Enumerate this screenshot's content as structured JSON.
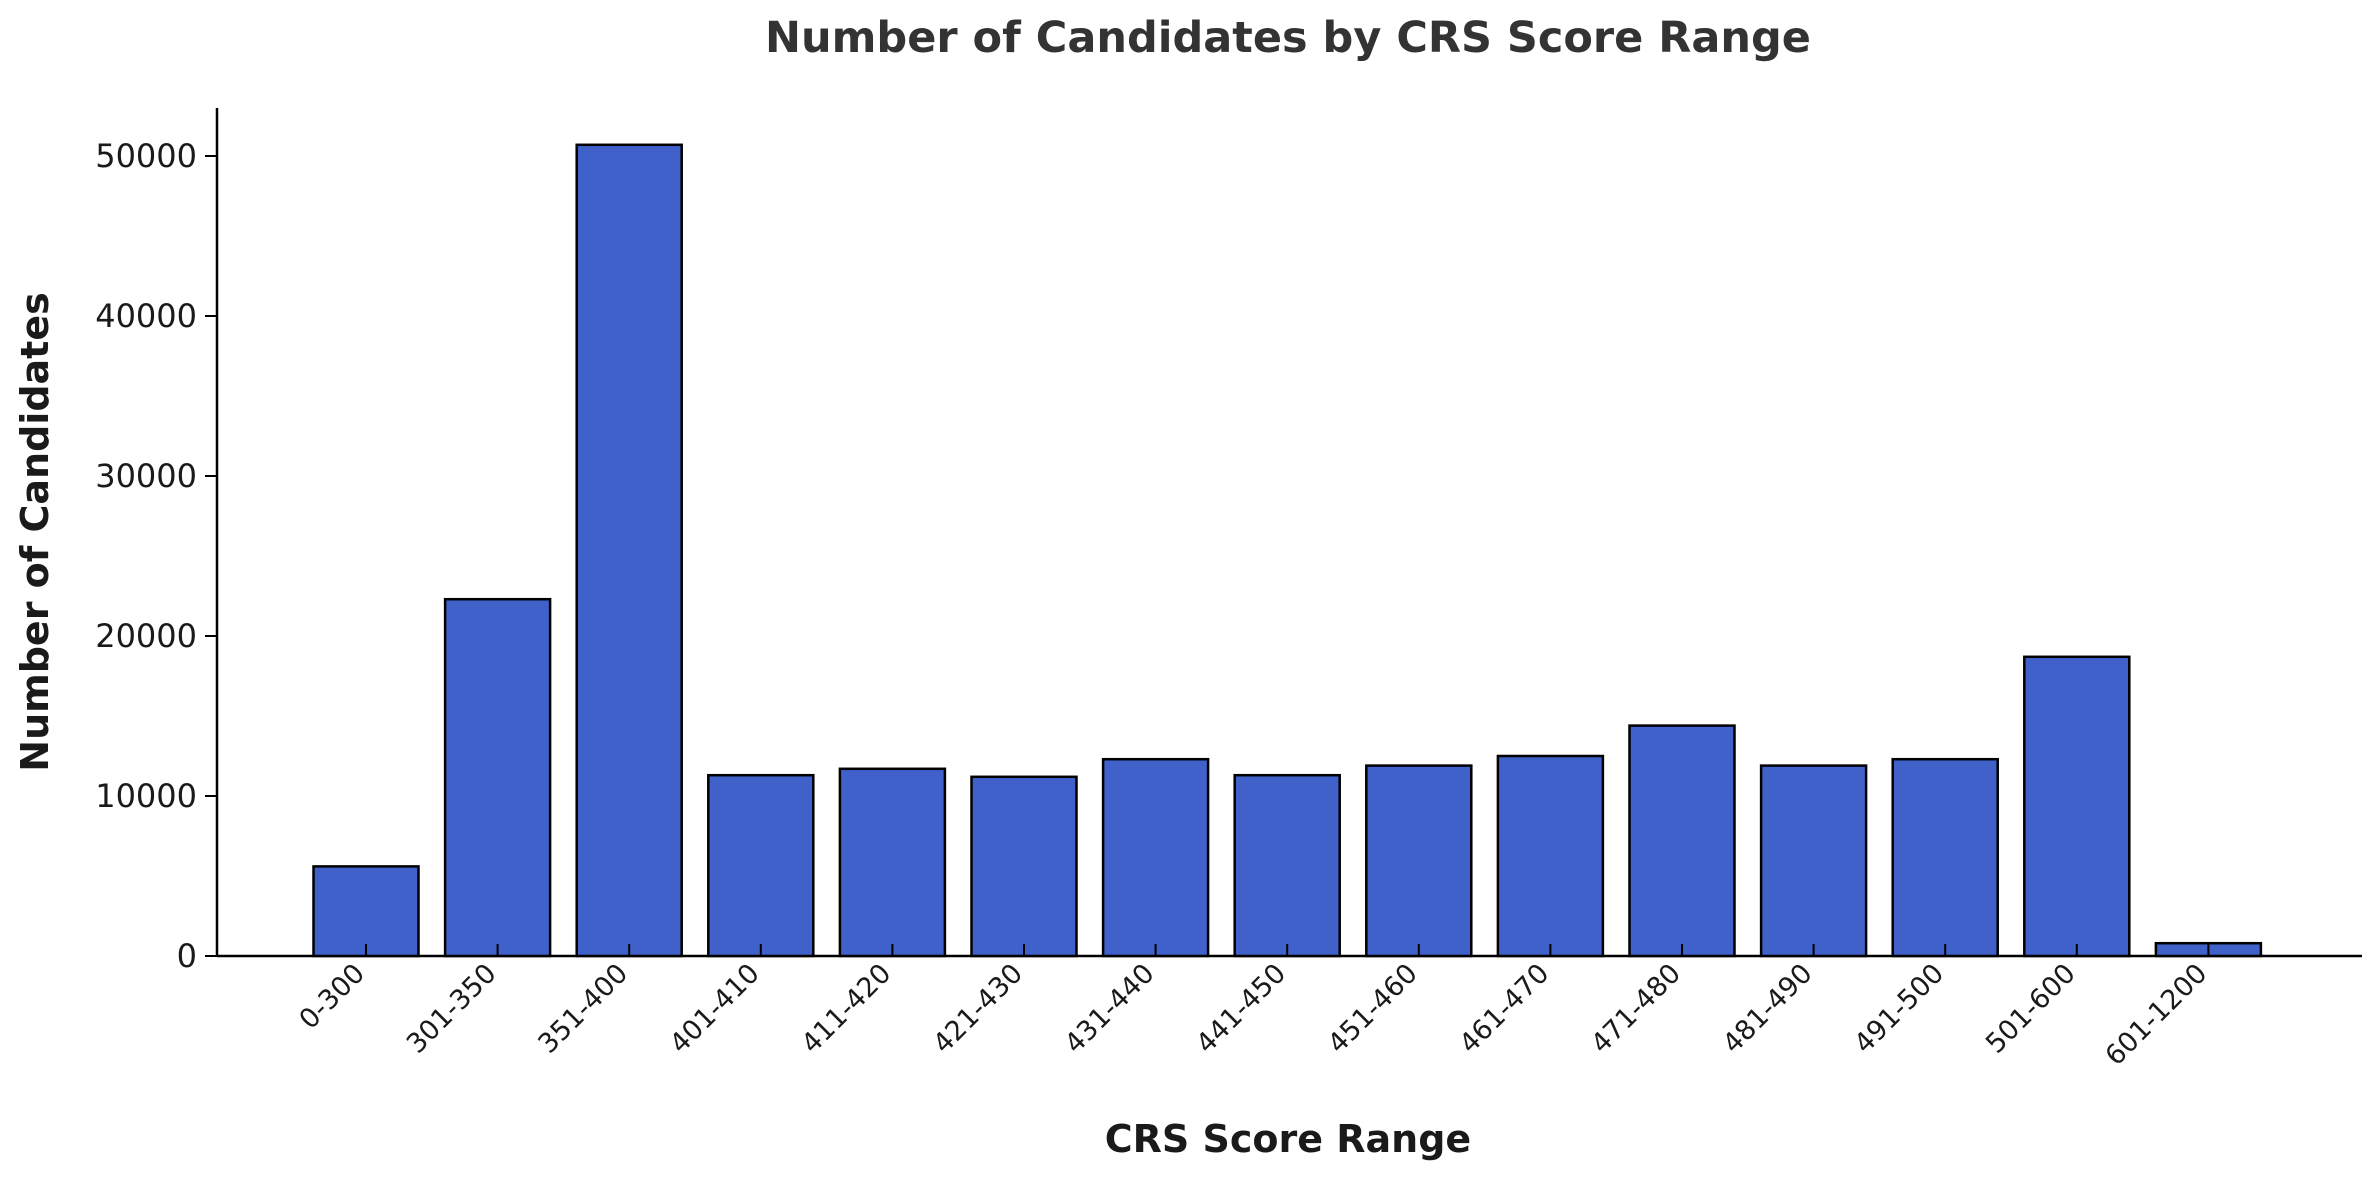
{
  "chart_data": {
    "type": "bar",
    "title": "Number of Candidates by CRS Score Range",
    "xlabel": "CRS Score Range",
    "ylabel": "Number of Candidates",
    "categories": [
      "0-300",
      "301-350",
      "351-400",
      "401-410",
      "411-420",
      "421-430",
      "431-440",
      "441-450",
      "451-460",
      "461-470",
      "471-480",
      "481-490",
      "491-500",
      "501-600",
      "601-1200"
    ],
    "values": [
      5600,
      22300,
      50700,
      11300,
      11700,
      11200,
      12300,
      11300,
      11900,
      12500,
      14400,
      11900,
      12300,
      18700,
      800
    ],
    "ylim": [
      0,
      53000
    ],
    "yticks": [
      0,
      10000,
      20000,
      30000,
      40000,
      50000
    ],
    "ytick_labels": [
      "0",
      "10000",
      "20000",
      "30000",
      "40000",
      "50000"
    ],
    "grid": false,
    "bar_color": "#3f61c9",
    "edge_color": "#000000"
  }
}
